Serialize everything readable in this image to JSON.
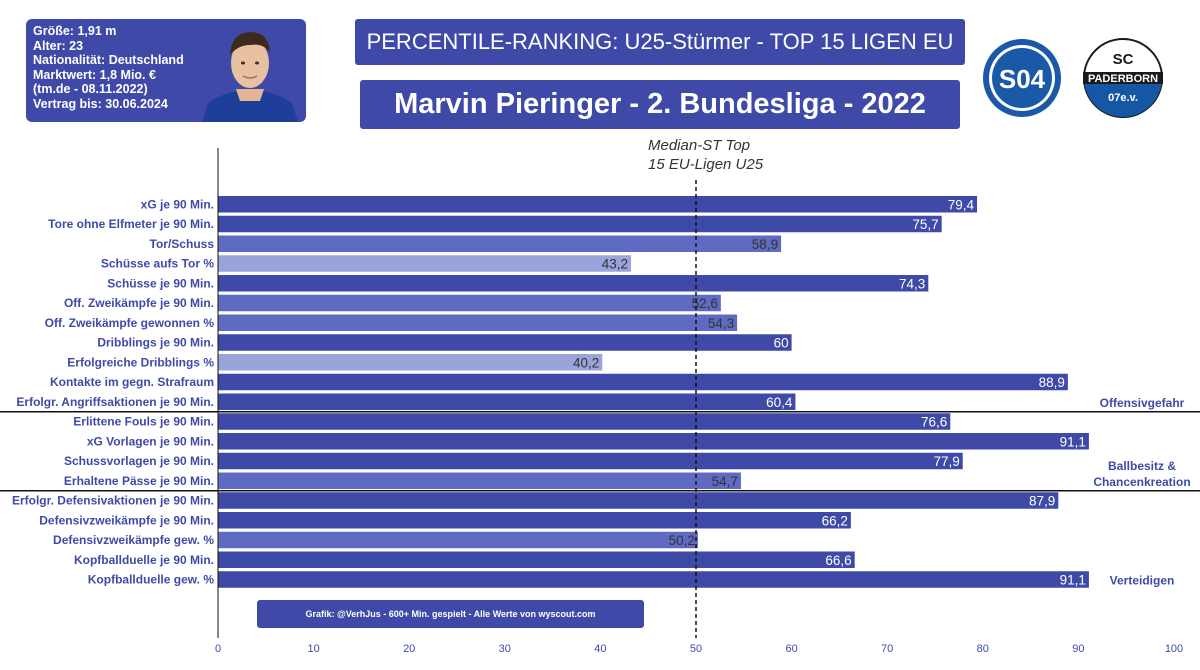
{
  "info": {
    "lines": [
      "Größe: 1,91 m",
      "Alter: 23",
      "Nationalität: Deutschland",
      "Marktwert: 1,8 Mio. €",
      "(tm.de - 08.11.2022)",
      "Vertrag bis: 30.06.2024"
    ]
  },
  "header": {
    "title": "PERCENTILE-RANKING: U25-Stürmer - TOP 15 LIGEN EU",
    "subtitle": "Marvin Pieringer - 2. Bundesliga - 2022"
  },
  "logos": {
    "schalke_text": "S04",
    "paderborn_top": "SC",
    "paderborn_name": "PADERBORN",
    "paderborn_bottom": "07e.v."
  },
  "footer": "Grafik: @VerhJus - 600+ Min. gespielt - Alle Werte von wyscout.com",
  "colors": {
    "dark": "#3f4aa8",
    "medium": "#5f6bc2",
    "light": "#9ba3db"
  },
  "chart_data": {
    "type": "bar",
    "orientation": "horizontal",
    "xlim": [
      0,
      100
    ],
    "xticks": [
      0,
      10,
      20,
      30,
      40,
      50,
      60,
      70,
      80,
      90,
      100
    ],
    "median": {
      "value": 50,
      "label_lines": [
        "Median-ST Top",
        "15 EU-Ligen U25"
      ]
    },
    "categories": [
      "xG je 90 Min.",
      "Tore ohne Elfmeter je 90 Min.",
      "Tor/Schuss",
      "Schüsse aufs Tor %",
      "Schüsse je 90 Min.",
      "Off. Zweikämpfe je 90 Min.",
      "Off. Zweikämpfe gewonnen %",
      "Dribblings je 90 Min.",
      "Erfolgreiche Dribblings %",
      "Kontakte im gegn. Strafraum",
      "Erfolgr. Angriffsaktionen je 90 Min.",
      "Erlittene Fouls je 90 Min.",
      "xG Vorlagen je 90 Min.",
      "Schussvorlagen je 90 Min.",
      "Erhaltene Pässe je 90 Min.",
      "Erfolgr. Defensivaktionen je 90 Min.",
      "Defensivzweikämpfe je 90 Min.",
      "Defensivzweikämpfe gew. %",
      "Kopfballduelle je 90 Min.",
      "Kopfballduelle gew. %"
    ],
    "values": [
      79.4,
      75.7,
      58.9,
      43.2,
      74.3,
      52.6,
      54.3,
      60,
      40.2,
      88.9,
      60.4,
      76.6,
      91.1,
      77.9,
      54.7,
      87.9,
      66.2,
      50.2,
      66.6,
      91.1
    ],
    "value_labels": [
      "79,4",
      "75,7",
      "58,9",
      "43,2",
      "74,3",
      "52,6",
      "54,3",
      "60",
      "40,2",
      "88,9",
      "60,4",
      "76,6",
      "91,1",
      "77,9",
      "54,7",
      "87,9",
      "66,2",
      "50,2",
      "66,6",
      "91,1"
    ],
    "sections": [
      {
        "name": "Offensivgefahr",
        "lines": [
          "Offensivgefahr"
        ],
        "last_index": 10
      },
      {
        "name": "Ballbesitz & Chancenkreation",
        "lines": [
          "Ballbesitz &",
          "Chancenkreation"
        ],
        "last_index": 14
      },
      {
        "name": "Verteidigen",
        "lines": [
          "Verteidigen"
        ],
        "last_index": 19
      }
    ]
  }
}
